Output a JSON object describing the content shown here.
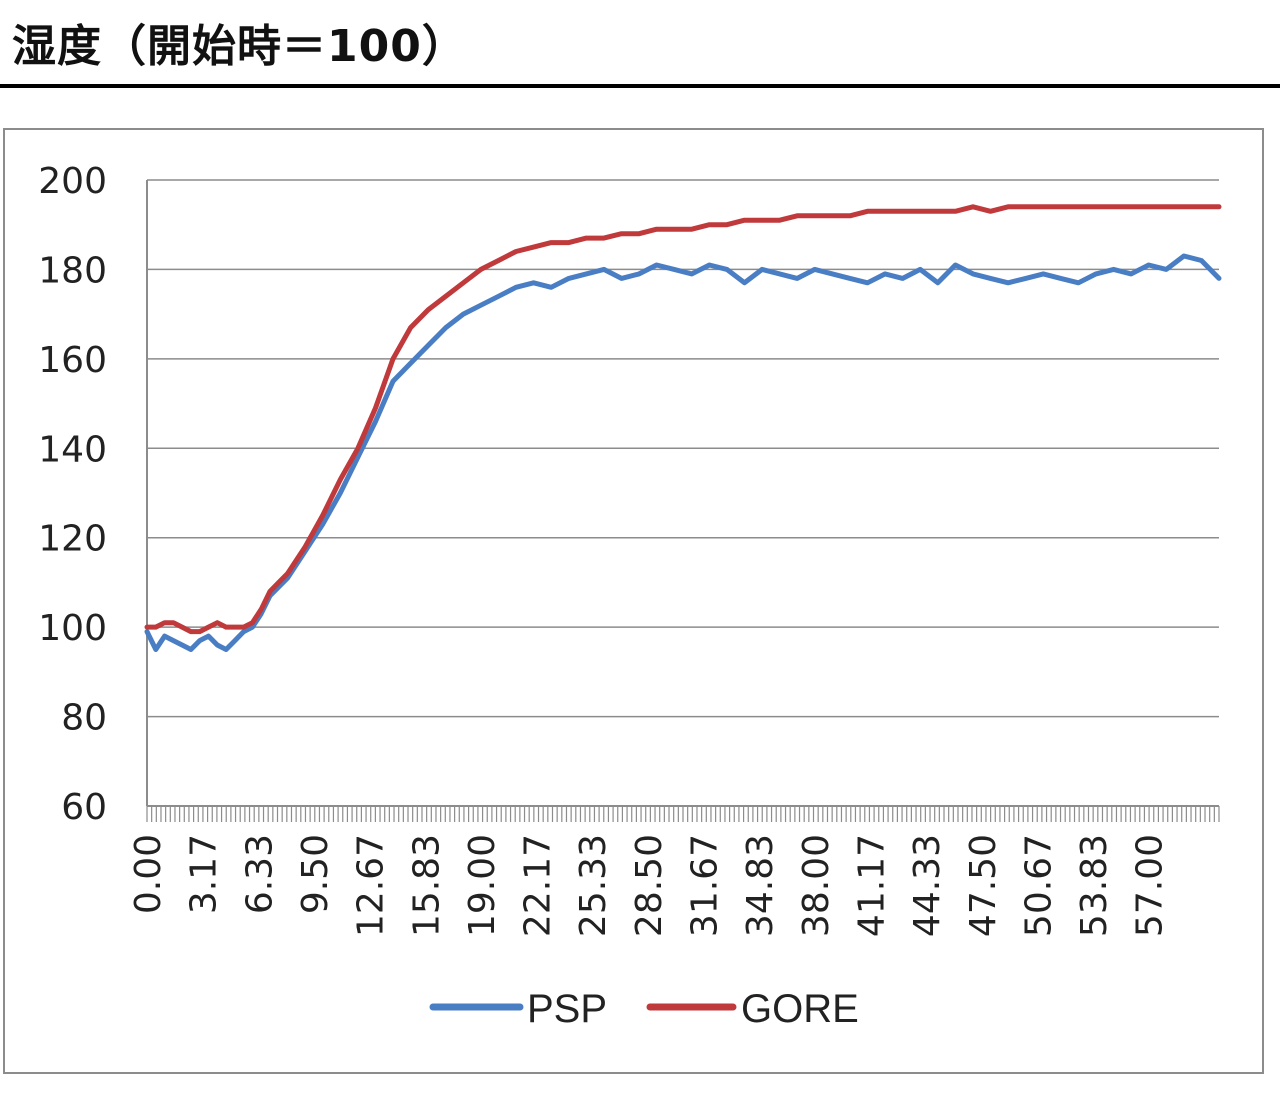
{
  "page": {
    "title": "湿度（開始時＝100）"
  },
  "colors": {
    "psp": "#4a7ec4",
    "gore": "#c0393b",
    "grid": "#8c8c8c",
    "axis": "#8c8c8c"
  },
  "chart_data": {
    "type": "line",
    "title": "",
    "xlabel": "",
    "ylabel": "",
    "ylim": [
      60,
      200
    ],
    "y_ticks": [
      60,
      80,
      100,
      120,
      140,
      160,
      180,
      200
    ],
    "x_range": [
      0,
      61
    ],
    "x_tick_labels": [
      "0.00",
      "3.17",
      "6.33",
      "9.50",
      "12.67",
      "15.83",
      "19.00",
      "22.17",
      "25.33",
      "28.50",
      "31.67",
      "34.83",
      "38.00",
      "41.17",
      "44.33",
      "47.50",
      "50.67",
      "53.83",
      "57.00"
    ],
    "grid": "horizontal",
    "legend_position": "bottom",
    "series": [
      {
        "name": "PSP",
        "color": "#4a7ec4",
        "points": [
          [
            0,
            99
          ],
          [
            0.5,
            95
          ],
          [
            1,
            98
          ],
          [
            1.5,
            97
          ],
          [
            2,
            96
          ],
          [
            2.5,
            95
          ],
          [
            3,
            97
          ],
          [
            3.5,
            98
          ],
          [
            4,
            96
          ],
          [
            4.5,
            95
          ],
          [
            5,
            97
          ],
          [
            5.5,
            99
          ],
          [
            6,
            100
          ],
          [
            6.5,
            103
          ],
          [
            7,
            107
          ],
          [
            7.5,
            109
          ],
          [
            8,
            111
          ],
          [
            9,
            117
          ],
          [
            10,
            123
          ],
          [
            11,
            130
          ],
          [
            12,
            138
          ],
          [
            13,
            146
          ],
          [
            14,
            155
          ],
          [
            15,
            159
          ],
          [
            16,
            163
          ],
          [
            17,
            167
          ],
          [
            18,
            170
          ],
          [
            19,
            172
          ],
          [
            20,
            174
          ],
          [
            21,
            176
          ],
          [
            22,
            177
          ],
          [
            23,
            176
          ],
          [
            24,
            178
          ],
          [
            25,
            179
          ],
          [
            26,
            180
          ],
          [
            27,
            178
          ],
          [
            28,
            179
          ],
          [
            29,
            181
          ],
          [
            30,
            180
          ],
          [
            31,
            179
          ],
          [
            32,
            181
          ],
          [
            33,
            180
          ],
          [
            34,
            177
          ],
          [
            35,
            180
          ],
          [
            36,
            179
          ],
          [
            37,
            178
          ],
          [
            38,
            180
          ],
          [
            39,
            179
          ],
          [
            40,
            178
          ],
          [
            41,
            177
          ],
          [
            42,
            179
          ],
          [
            43,
            178
          ],
          [
            44,
            180
          ],
          [
            45,
            177
          ],
          [
            46,
            181
          ],
          [
            47,
            179
          ],
          [
            48,
            178
          ],
          [
            49,
            177
          ],
          [
            50,
            178
          ],
          [
            51,
            179
          ],
          [
            52,
            178
          ],
          [
            53,
            177
          ],
          [
            54,
            179
          ],
          [
            55,
            180
          ],
          [
            56,
            179
          ],
          [
            57,
            181
          ],
          [
            58,
            180
          ],
          [
            59,
            183
          ],
          [
            60,
            182
          ],
          [
            61,
            178
          ]
        ]
      },
      {
        "name": "GORE",
        "color": "#c0393b",
        "points": [
          [
            0,
            100
          ],
          [
            0.5,
            100
          ],
          [
            1,
            101
          ],
          [
            1.5,
            101
          ],
          [
            2,
            100
          ],
          [
            2.5,
            99
          ],
          [
            3,
            99
          ],
          [
            3.5,
            100
          ],
          [
            4,
            101
          ],
          [
            4.5,
            100
          ],
          [
            5,
            100
          ],
          [
            5.5,
            100
          ],
          [
            6,
            101
          ],
          [
            6.5,
            104
          ],
          [
            7,
            108
          ],
          [
            7.5,
            110
          ],
          [
            8,
            112
          ],
          [
            9,
            118
          ],
          [
            10,
            125
          ],
          [
            11,
            133
          ],
          [
            12,
            140
          ],
          [
            13,
            149
          ],
          [
            14,
            160
          ],
          [
            15,
            167
          ],
          [
            16,
            171
          ],
          [
            17,
            174
          ],
          [
            18,
            177
          ],
          [
            19,
            180
          ],
          [
            20,
            182
          ],
          [
            21,
            184
          ],
          [
            22,
            185
          ],
          [
            23,
            186
          ],
          [
            24,
            186
          ],
          [
            25,
            187
          ],
          [
            26,
            187
          ],
          [
            27,
            188
          ],
          [
            28,
            188
          ],
          [
            29,
            189
          ],
          [
            30,
            189
          ],
          [
            31,
            189
          ],
          [
            32,
            190
          ],
          [
            33,
            190
          ],
          [
            34,
            191
          ],
          [
            35,
            191
          ],
          [
            36,
            191
          ],
          [
            37,
            192
          ],
          [
            38,
            192
          ],
          [
            39,
            192
          ],
          [
            40,
            192
          ],
          [
            41,
            193
          ],
          [
            42,
            193
          ],
          [
            43,
            193
          ],
          [
            44,
            193
          ],
          [
            45,
            193
          ],
          [
            46,
            193
          ],
          [
            47,
            194
          ],
          [
            48,
            193
          ],
          [
            49,
            194
          ],
          [
            50,
            194
          ],
          [
            51,
            194
          ],
          [
            52,
            194
          ],
          [
            53,
            194
          ],
          [
            54,
            194
          ],
          [
            55,
            194
          ],
          [
            56,
            194
          ],
          [
            57,
            194
          ],
          [
            58,
            194
          ],
          [
            59,
            194
          ],
          [
            60,
            194
          ],
          [
            61,
            194
          ]
        ]
      }
    ]
  }
}
